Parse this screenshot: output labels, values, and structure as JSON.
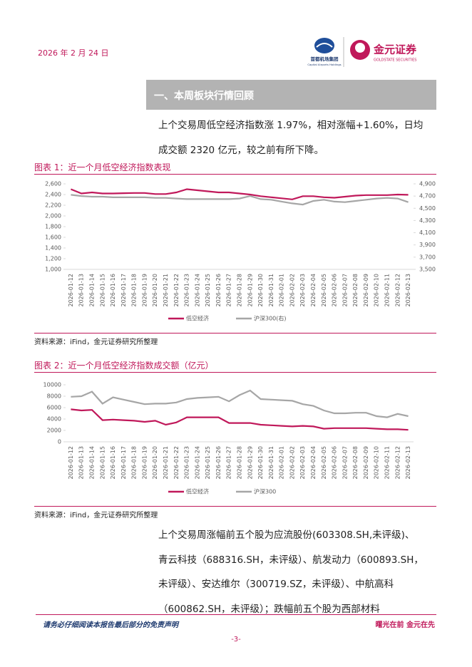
{
  "header": {
    "date": "2026 年 2 月 24 日",
    "logo1": "首都机场集团",
    "logo1_sub": "Capital Airports Holdings",
    "logo2": "金元证券",
    "logo2_sub": "GOLDSTATE SECURITIES"
  },
  "section_title": "一、本周板块行情回顾",
  "paragraph1": [
    "上个交易周低空经济指数涨 1.97%，相对涨幅+1.60%，日均",
    "成交额 2320 亿元，较之前有所下降。"
  ],
  "chart_data": [
    {
      "type": "line",
      "caption": "图表 1：近一个月低空经济指数表现",
      "source": "资料来源：iFind，金元证券研究所整理",
      "categories": [
        "2026-01-12",
        "2026-01-13",
        "2026-01-14",
        "2026-01-15",
        "2026-01-16",
        "2026-01-17",
        "2026-01-18",
        "2026-01-19",
        "2026-01-20",
        "2026-01-21",
        "2026-01-22",
        "2026-01-23",
        "2026-01-24",
        "2026-01-25",
        "2026-01-26",
        "2026-01-27",
        "2026-01-28",
        "2026-01-29",
        "2026-01-30",
        "2026-01-31",
        "2026-02-01",
        "2026-02-02",
        "2026-02-03",
        "2026-02-04",
        "2026-02-05",
        "2026-02-06",
        "2026-02-07",
        "2026-02-08",
        "2026-02-09",
        "2026-02-10",
        "2026-02-11",
        "2026-02-12",
        "2026-02-13"
      ],
      "series": [
        {
          "name": "低空经济",
          "color": "#c0185a",
          "values": [
            2500,
            2420,
            2440,
            2420,
            2420,
            2425,
            2430,
            2430,
            2410,
            2410,
            2440,
            2500,
            2480,
            2460,
            2440,
            2440,
            2420,
            2400,
            2370,
            2350,
            2330,
            2310,
            2370,
            2370,
            2350,
            2340,
            2360,
            2380,
            2390,
            2390,
            2390,
            2400,
            2395
          ]
        },
        {
          "name": "沪深300(右)",
          "color": "#a6a6a6",
          "axis": "y2",
          "values": [
            4720,
            4700,
            4690,
            4690,
            4680,
            4680,
            4680,
            4680,
            4670,
            4670,
            4660,
            4650,
            4650,
            4650,
            4650,
            4650,
            4660,
            4700,
            4650,
            4640,
            4610,
            4580,
            4560,
            4620,
            4640,
            4610,
            4600,
            4620,
            4640,
            4660,
            4670,
            4660,
            4600
          ]
        }
      ],
      "ylim": [
        1000,
        2600
      ],
      "yticks": [
        {
          "value": 1000,
          "label": "1,000"
        },
        {
          "value": 1200,
          "label": "1,200"
        },
        {
          "value": 1400,
          "label": "1,400"
        },
        {
          "value": 1600,
          "label": "1,600"
        },
        {
          "value": 1800,
          "label": "1,800"
        },
        {
          "value": 2000,
          "label": "2,000"
        },
        {
          "value": 2200,
          "label": "2,200"
        },
        {
          "value": 2400,
          "label": "2,400"
        },
        {
          "value": 2600,
          "label": "2,600"
        }
      ],
      "y2lim": [
        3500,
        4900
      ],
      "y2ticks": [
        {
          "value": 3500,
          "label": "3,500"
        },
        {
          "value": 3700,
          "label": "3,700"
        },
        {
          "value": 3900,
          "label": "3,900"
        },
        {
          "value": 4100,
          "label": "4,100"
        },
        {
          "value": 4300,
          "label": "4,300"
        },
        {
          "value": 4500,
          "label": "4,500"
        },
        {
          "value": 4700,
          "label": "4,700"
        },
        {
          "value": 4900,
          "label": "4,900"
        }
      ],
      "grid": false
    },
    {
      "type": "line",
      "caption": "图表 2：近一个月低空经济指数成交额（亿元）",
      "source": "资料来源：iFind，金元证券研究所整理",
      "categories": [
        "2026-01-12",
        "2026-01-13",
        "2026-01-14",
        "2026-01-15",
        "2026-01-16",
        "2026-01-17",
        "2026-01-18",
        "2026-01-19",
        "2026-01-20",
        "2026-01-21",
        "2026-01-22",
        "2026-01-23",
        "2026-01-24",
        "2026-01-25",
        "2026-01-26",
        "2026-01-27",
        "2026-01-28",
        "2026-01-29",
        "2026-01-30",
        "2026-01-31",
        "2026-02-01",
        "2026-02-02",
        "2026-02-03",
        "2026-02-04",
        "2026-02-05",
        "2026-02-06",
        "2026-02-07",
        "2026-02-08",
        "2026-02-09",
        "2026-02-10",
        "2026-02-11",
        "2026-02-12",
        "2026-02-13"
      ],
      "series": [
        {
          "name": "低空经济",
          "color": "#c0185a",
          "values": [
            5700,
            5500,
            5600,
            3800,
            3900,
            3800,
            3700,
            3500,
            3700,
            3000,
            3400,
            4300,
            4300,
            4300,
            4300,
            3300,
            3300,
            3300,
            3000,
            2900,
            2800,
            2700,
            2800,
            2700,
            2300,
            2400,
            2400,
            2400,
            2400,
            2300,
            2200,
            2200,
            2100
          ]
        },
        {
          "name": "沪深300",
          "color": "#a6a6a6",
          "values": [
            7900,
            8000,
            8800,
            6700,
            7800,
            7400,
            7000,
            6600,
            6700,
            6700,
            6900,
            7500,
            7700,
            7800,
            7900,
            7100,
            8200,
            9000,
            7500,
            7400,
            7300,
            7200,
            6600,
            6300,
            5500,
            5000,
            5000,
            5100,
            5100,
            4500,
            4300,
            4900,
            4500
          ]
        }
      ],
      "ylim": [
        0,
        10000
      ],
      "yticks": [
        0,
        2000,
        4000,
        6000,
        8000,
        10000
      ],
      "grid": false
    }
  ],
  "paragraph2": [
    "上个交易周涨幅前五个股为应流股份(603308.SH,未评级)、",
    "青云科技（688316.SH，未评级）、航发动力（600893.SH，",
    "未评级）、安达维尔（300719.SZ，未评级）、中航高科",
    "（600862.SH，未评级）；跌幅前五个股为西部材料"
  ],
  "footer": {
    "disclaimer": "请务必仔细阅读本报告最后部分的免责声明",
    "slogan": "曙光在前 金元在先",
    "page": "-3-"
  }
}
